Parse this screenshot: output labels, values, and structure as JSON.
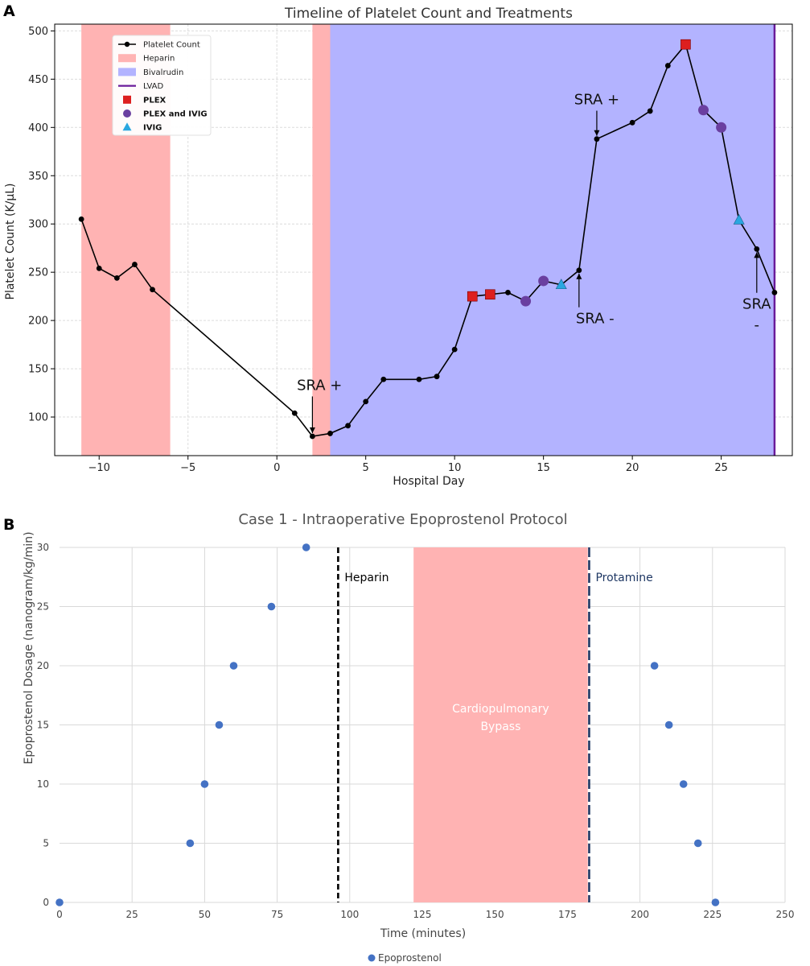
{
  "chart_data": [
    {
      "id": "A",
      "panel_label": "A",
      "type": "line",
      "title": "Timeline of Platelet Count and Treatments",
      "xlabel": "Hospital Day",
      "ylabel": "Platelet Count (K/μL)",
      "xlim": [
        -12.5,
        29
      ],
      "ylim": [
        60,
        507
      ],
      "xticks": [
        -10,
        -5,
        0,
        5,
        10,
        15,
        20,
        25
      ],
      "xtick_labels": [
        "−10",
        "−5",
        "0",
        "5",
        "10",
        "15",
        "20",
        "25"
      ],
      "yticks": [
        100,
        150,
        200,
        250,
        300,
        350,
        400,
        450,
        500
      ],
      "ytick_labels": [
        "100",
        "150",
        "200",
        "250",
        "300",
        "350",
        "400",
        "450",
        "500"
      ],
      "grid": true,
      "legend_position": "top-left",
      "colors": {
        "platelet": "#000000",
        "heparin": "#ffb3b3",
        "bivalirudin": "#b3b3ff",
        "lvad": "#6a1b9a",
        "plex": "#dd1f1f",
        "plex_ivig": "#6a3fa0",
        "ivig": "#2aa7e0"
      },
      "series": [
        {
          "name": "Platelet Count",
          "type": "line",
          "x": [
            -11,
            -10,
            -9,
            -8,
            -7,
            1,
            2,
            3,
            4,
            5,
            6,
            8,
            9,
            10,
            11,
            12,
            13,
            14,
            15,
            16,
            17,
            18,
            20,
            21,
            22,
            23,
            24,
            25,
            26,
            27,
            28
          ],
          "y": [
            305,
            254,
            244,
            258,
            232,
            104,
            80,
            83,
            91,
            116,
            139,
            139,
            142,
            170,
            225,
            227,
            229,
            220,
            241,
            237,
            252,
            388,
            405,
            417,
            464,
            486,
            418,
            400,
            304,
            274,
            229
          ]
        }
      ],
      "shaded_regions": [
        {
          "name": "Heparin",
          "x_ranges": [
            [
              -11,
              -6
            ],
            [
              2,
              3
            ]
          ]
        },
        {
          "name": "Bivalrudin",
          "x_ranges": [
            [
              3,
              28
            ]
          ]
        }
      ],
      "vertical_lines": [
        {
          "name": "LVAD",
          "x": 28
        }
      ],
      "markers": [
        {
          "name": "PLEX",
          "shape": "square",
          "points": [
            [
              11,
              225
            ],
            [
              12,
              227
            ],
            [
              23,
              486
            ]
          ]
        },
        {
          "name": "PLEX and IVIG",
          "shape": "circle",
          "points": [
            [
              14,
              220
            ],
            [
              15,
              241
            ],
            [
              24,
              418
            ],
            [
              25,
              400
            ]
          ]
        },
        {
          "name": "IVIG",
          "shape": "triangle",
          "points": [
            [
              16,
              237
            ],
            [
              26,
              304
            ]
          ]
        }
      ],
      "legend": [
        {
          "key": "platelet",
          "label": "Platelet Count"
        },
        {
          "key": "heparin",
          "label": "Heparin"
        },
        {
          "key": "bivalirudin",
          "label": "Bivalrudin"
        },
        {
          "key": "lvad",
          "label": "LVAD"
        },
        {
          "key": "plex",
          "label": "PLEX"
        },
        {
          "key": "plex_ivig",
          "label": "PLEX and IVIG"
        },
        {
          "key": "ivig",
          "label": "IVIG"
        }
      ],
      "annotations": [
        {
          "lines": [
            "SRA +"
          ],
          "point": [
            2,
            80
          ],
          "text_at": [
            2.4,
            128
          ],
          "align": "middle"
        },
        {
          "lines": [
            "SRA +"
          ],
          "point": [
            18,
            388
          ],
          "text_at": [
            18,
            424
          ],
          "align": "middle"
        },
        {
          "lines": [
            "SRA -"
          ],
          "point": [
            17,
            252
          ],
          "text_at": [
            17.9,
            197
          ],
          "align": "middle"
        },
        {
          "lines": [
            "SRA",
            "-"
          ],
          "point": [
            27,
            274
          ],
          "text_at": [
            27,
            212
          ],
          "align": "middle"
        }
      ]
    },
    {
      "id": "B",
      "panel_label": "B",
      "type": "scatter",
      "title": "Case 1 - Intraoperative Epoprostenol Protocol",
      "xlabel": "Time (minutes)",
      "ylabel": "Epoprostenol Dosage (nanogram/kg/min)",
      "xlim": [
        0,
        250
      ],
      "ylim": [
        0,
        30
      ],
      "xticks": [
        0,
        25,
        50,
        75,
        100,
        125,
        150,
        175,
        200,
        225,
        250
      ],
      "yticks": [
        0,
        5,
        10,
        15,
        20,
        25,
        30
      ],
      "grid": true,
      "legend_position": "bottom-center",
      "colors": {
        "points": "#4472c4",
        "bypass": "#ffb3b3",
        "bypass_text": "#ffffff",
        "heparin_line": "#000000",
        "protamine_line": "#1f3864"
      },
      "series": [
        {
          "name": "Epoprostenol",
          "x": [
            0,
            45,
            50,
            55,
            60,
            73,
            85,
            205,
            210,
            215,
            220,
            226
          ],
          "y": [
            0,
            5,
            10,
            15,
            20,
            25,
            30,
            20,
            15,
            10,
            5,
            0
          ]
        }
      ],
      "shaded_regions": [
        {
          "label_lines": [
            "Cardiopulmonary",
            "Bypass"
          ],
          "x_range": [
            122,
            182
          ]
        }
      ],
      "vertical_lines": [
        {
          "label": "Heparin",
          "x": 96
        },
        {
          "label": "Protamine",
          "x": 182.5
        }
      ]
    }
  ]
}
